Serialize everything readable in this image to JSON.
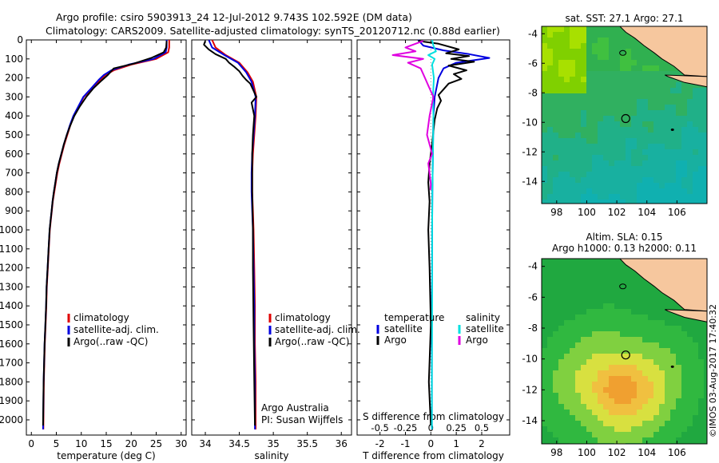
{
  "header": {
    "line1": "Argo profile: csiro 5903913_24 12-Jul-2012 9.743S 102.592E (DM data)",
    "line2": "Climatology: CARS2009. Satellite-adjusted climatology: synTS_20120712.nc (0.88d earlier)"
  },
  "side_stamp": "©IMOS 03-Aug-2017 17:40:32",
  "colors": {
    "climatology": "#e00000",
    "satellite": "#0000e0",
    "argo": "#000000",
    "sal_satellite": "#00e0e0",
    "sal_argo": "#e000e0"
  },
  "chart_data": [
    {
      "type": "line",
      "panel": "temperature",
      "xlabel": "temperature (deg C)",
      "xticks": [
        0,
        5,
        10,
        15,
        20,
        25,
        30
      ],
      "xlim": [
        -1,
        31
      ],
      "ylim": [
        2080,
        0
      ],
      "yticks": [
        0,
        100,
        200,
        300,
        400,
        500,
        600,
        700,
        800,
        900,
        1000,
        1100,
        1200,
        1300,
        1400,
        1500,
        1600,
        1700,
        1800,
        1900,
        2000
      ],
      "legend": [
        "climatology",
        "satellite-adj. clim.",
        "Argo(..raw -QC)"
      ],
      "series": [
        {
          "name": "climatology",
          "color": "#e00000",
          "x": [
            27.6,
            27.6,
            27.4,
            25.0,
            20.0,
            16.5,
            14.8,
            13.8,
            12.0,
            10.5,
            9.5,
            8.5,
            7.8,
            7.2,
            6.6,
            6.1,
            5.6,
            5.2,
            4.9,
            4.6,
            4.3,
            4.1,
            3.9,
            3.7,
            3.5,
            3.3,
            3.1,
            3.0,
            2.85,
            2.7,
            2.6,
            2.5,
            2.4
          ],
          "y": [
            0,
            40,
            65,
            100,
            130,
            160,
            185,
            210,
            260,
            300,
            350,
            400,
            450,
            500,
            550,
            600,
            650,
            700,
            750,
            800,
            850,
            900,
            950,
            1000,
            1100,
            1200,
            1300,
            1400,
            1500,
            1600,
            1700,
            1800,
            2050
          ]
        },
        {
          "name": "satellite-adj. clim.",
          "color": "#0000e0",
          "x": [
            27.1,
            27.1,
            26.9,
            24.5,
            19.5,
            16.0,
            14.5,
            13.5,
            11.8,
            10.4,
            9.4,
            8.4,
            7.7,
            7.1,
            6.5,
            6.0,
            5.5,
            5.1,
            4.8,
            4.5,
            4.25,
            4.05,
            3.85,
            3.65,
            3.45,
            3.25,
            3.05,
            2.95,
            2.8,
            2.65,
            2.55,
            2.45,
            2.35
          ],
          "y": [
            0,
            40,
            65,
            100,
            130,
            160,
            185,
            210,
            260,
            300,
            350,
            400,
            450,
            500,
            550,
            600,
            650,
            700,
            750,
            800,
            850,
            900,
            950,
            1000,
            1100,
            1200,
            1300,
            1400,
            1500,
            1600,
            1700,
            1800,
            2050
          ]
        },
        {
          "name": "Argo(..raw -QC)",
          "color": "#000000",
          "x": [
            27.1,
            27.0,
            26.5,
            24.0,
            20.5,
            16.5,
            15.3,
            14.0,
            12.4,
            11.0,
            9.7,
            8.6,
            7.8,
            7.1,
            6.5,
            6.0,
            5.5,
            5.1,
            4.8,
            4.5,
            4.25,
            4.05,
            3.85,
            3.65,
            3.45,
            3.25,
            3.05,
            2.95,
            2.8,
            2.65,
            2.55,
            2.45,
            2.35
          ],
          "y": [
            5,
            40,
            65,
            95,
            125,
            150,
            185,
            215,
            255,
            300,
            350,
            400,
            450,
            500,
            550,
            600,
            650,
            700,
            750,
            800,
            850,
            900,
            950,
            1000,
            1100,
            1200,
            1300,
            1400,
            1500,
            1600,
            1700,
            1800,
            2030
          ]
        }
      ]
    },
    {
      "type": "line",
      "panel": "salinity",
      "xlabel": "salinity",
      "xticks": [
        34,
        34.5,
        35,
        35.5,
        36
      ],
      "xlim": [
        33.8,
        36.15
      ],
      "ylim": [
        2080,
        0
      ],
      "legend": [
        "climatology",
        "satellite-adj. clim.",
        "Argo(..raw -QC)"
      ],
      "annotation": [
        "Argo Australia",
        "PI: Susan Wijffels"
      ],
      "series": [
        {
          "name": "climatology",
          "color": "#e00000",
          "x": [
            34.1,
            34.15,
            34.3,
            34.5,
            34.62,
            34.7,
            34.75,
            34.74,
            34.72,
            34.7,
            34.69,
            34.69,
            34.7,
            34.71,
            34.72,
            34.73,
            34.73,
            34.74,
            34.74
          ],
          "y": [
            0,
            40,
            80,
            120,
            170,
            220,
            300,
            400,
            500,
            600,
            700,
            800,
            900,
            1000,
            1200,
            1400,
            1600,
            1800,
            2050
          ]
        },
        {
          "name": "satellite-adj. clim.",
          "color": "#0000e0",
          "x": [
            34.05,
            34.1,
            34.28,
            34.48,
            34.6,
            34.68,
            34.74,
            34.73,
            34.71,
            34.69,
            34.68,
            34.68,
            34.69,
            34.7,
            34.71,
            34.72,
            34.72,
            34.73,
            34.73
          ],
          "y": [
            0,
            40,
            80,
            120,
            170,
            220,
            300,
            400,
            500,
            600,
            700,
            800,
            900,
            1000,
            1200,
            1400,
            1600,
            1800,
            2050
          ]
        },
        {
          "name": "Argo(..raw -QC)",
          "color": "#000000",
          "x": [
            34.0,
            33.98,
            34.05,
            34.15,
            34.3,
            34.35,
            34.42,
            34.5,
            34.55,
            34.6,
            34.66,
            34.7,
            34.75,
            34.68,
            34.72,
            34.7,
            34.69,
            34.69,
            34.7,
            34.7,
            34.71,
            34.72,
            34.73
          ],
          "y": [
            5,
            25,
            50,
            75,
            100,
            120,
            140,
            165,
            190,
            210,
            230,
            260,
            300,
            330,
            400,
            500,
            600,
            800,
            1000,
            1200,
            1500,
            1800,
            2030
          ]
        }
      ]
    },
    {
      "type": "line",
      "panel": "difference",
      "xlabel": "T difference from climatology",
      "xlabel_top": "S difference from climatology",
      "xticks": [
        -2,
        -1,
        0,
        1,
        2
      ],
      "xticks_top": [
        "-0.5",
        "-0.25",
        "0",
        "0.25",
        "0.5"
      ],
      "xlim": [
        -2.9,
        3.1
      ],
      "ylim": [
        2080,
        0
      ],
      "legend_temperature_title": "temperature",
      "legend_salinity_title": "salinity",
      "legend_temperature": [
        "satellite",
        "Argo"
      ],
      "legend_salinity": [
        "satellite",
        "Argo"
      ],
      "series": [
        {
          "name": "satellite",
          "group": "temperature",
          "color": "#0000e0",
          "x": [
            -0.5,
            -0.3,
            0.5,
            1.5,
            2.3,
            1.0,
            0.5,
            0.3,
            0.15,
            0.1,
            0.08,
            0.06,
            0.05,
            0.05,
            0.04,
            0.04,
            0.04,
            0.04
          ],
          "y": [
            0,
            30,
            55,
            75,
            95,
            120,
            150,
            200,
            300,
            400,
            600,
            800,
            1000,
            1200,
            1400,
            1600,
            1800,
            2050
          ]
        },
        {
          "name": "Argo",
          "group": "temperature",
          "color": "#000000",
          "x": [
            -0.5,
            0.3,
            1.1,
            0.6,
            1.5,
            0.8,
            1.7,
            0.7,
            1.4,
            0.9,
            1.2,
            0.7,
            0.5,
            0.3,
            0.4,
            0.25,
            0.15,
            0.1,
            0.05,
            -0.05,
            -0.1,
            -0.05,
            -0.1,
            -0.05,
            0.0,
            -0.08,
            0.0
          ],
          "y": [
            5,
            20,
            50,
            70,
            85,
            100,
            115,
            135,
            160,
            180,
            205,
            230,
            260,
            290,
            320,
            360,
            420,
            480,
            550,
            650,
            750,
            850,
            1000,
            1200,
            1500,
            1800,
            2030
          ]
        },
        {
          "name": "satellite",
          "group": "salinity",
          "color": "#00e0e0",
          "x": [
            0.05,
            0.1,
            0.2,
            -0.1,
            0.15,
            0.05,
            0.12,
            0.08,
            0.1,
            0.08,
            0.06,
            0.05,
            0.05,
            0.04,
            0.04
          ],
          "y": [
            0,
            30,
            60,
            80,
            100,
            130,
            200,
            300,
            400,
            600,
            800,
            1000,
            1400,
            1800,
            2050
          ]
        },
        {
          "name": "Argo",
          "group": "salinity",
          "color": "#e000e0",
          "x": [
            -0.3,
            -1.0,
            -0.6,
            -1.5,
            -0.3,
            -0.9,
            -0.4,
            -0.3,
            -0.2,
            -0.1,
            0.1,
            -0.05,
            -0.15,
            0.05,
            -0.1,
            -0.05,
            0.0,
            -0.02
          ],
          "y": [
            5,
            40,
            60,
            80,
            100,
            120,
            150,
            180,
            210,
            240,
            300,
            400,
            500,
            600,
            650,
            700,
            760,
            790
          ]
        }
      ]
    },
    {
      "type": "heatmap",
      "panel": "map_sst",
      "title": "sat. SST: 27.1  Argo: 27.1",
      "xticks": [
        98,
        100,
        102,
        104,
        106
      ],
      "yticks": [
        -4,
        -6,
        -8,
        -10,
        -12,
        -14
      ],
      "xlim": [
        97,
        108
      ],
      "ylim": [
        -3.5,
        -15.5
      ],
      "argo_position": {
        "lon": 102.592,
        "lat": -9.743
      }
    },
    {
      "type": "heatmap",
      "panel": "map_sla",
      "title": "Altim. SLA: 0.15",
      "subtitle": "Argo h1000: 0.13  h2000: 0.11",
      "xticks": [
        98,
        100,
        102,
        104,
        106
      ],
      "yticks": [
        -4,
        -6,
        -8,
        -10,
        -12,
        -14
      ],
      "xlim": [
        97,
        108
      ],
      "ylim": [
        -3.5,
        -15.5
      ],
      "argo_position": {
        "lon": 102.592,
        "lat": -9.743
      }
    }
  ]
}
